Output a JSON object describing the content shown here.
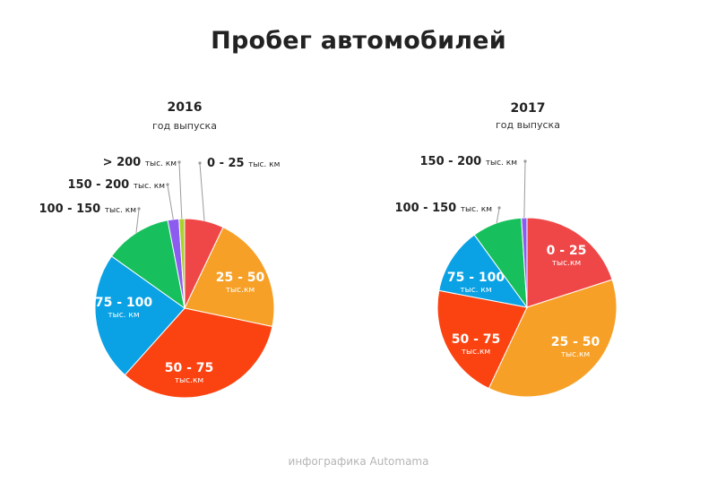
{
  "title": "Пробег автомобилей",
  "footer": "инфографика Automama",
  "chart_data": [
    {
      "type": "pie",
      "title": "2016",
      "subtitle": "год выпуска",
      "slices": [
        {
          "label": "0 - 25",
          "unit": "тыс. км",
          "value": 7,
          "color": "#ef4747",
          "label_pos": "outside"
        },
        {
          "label": "25 - 50",
          "unit": "тыс.км",
          "value": 21,
          "color": "#f7a027",
          "label_pos": "inside"
        },
        {
          "label": "50 - 75",
          "unit": "тыс.км",
          "value": 33,
          "color": "#fb4312",
          "label_pos": "inside"
        },
        {
          "label": "75 - 100",
          "unit": "тыс. км",
          "value": 23,
          "color": "#0aa2e4",
          "label_pos": "inside"
        },
        {
          "label": "100 - 150",
          "unit": "тыс. км",
          "value": 12,
          "color": "#17c05c",
          "label_pos": "outside"
        },
        {
          "label": "150 - 200",
          "unit": "тыс. км",
          "value": 2,
          "color": "#8c5cf0",
          "label_pos": "outside"
        },
        {
          "label": "> 200",
          "unit": "тыс. км",
          "value": 1,
          "color": "#a8d12c",
          "label_pos": "outside"
        }
      ]
    },
    {
      "type": "pie",
      "title": "2017",
      "subtitle": "год выпуска",
      "slices": [
        {
          "label": "0 - 25",
          "unit": "тыс.км",
          "value": 20,
          "color": "#ef4747",
          "label_pos": "inside"
        },
        {
          "label": "25 - 50",
          "unit": "тыс.км",
          "value": 37,
          "color": "#f7a027",
          "label_pos": "inside"
        },
        {
          "label": "50 - 75",
          "unit": "тыс.км",
          "value": 21,
          "color": "#fb4312",
          "label_pos": "inside"
        },
        {
          "label": "75 - 100",
          "unit": "тыс. км",
          "value": 12,
          "color": "#0aa2e4",
          "label_pos": "inside"
        },
        {
          "label": "100 - 150",
          "unit": "тыс. км",
          "value": 9,
          "color": "#17c05c",
          "label_pos": "outside"
        },
        {
          "label": "150 - 200",
          "unit": "тыс. км",
          "value": 1,
          "color": "#8c5cf0",
          "label_pos": "outside"
        }
      ]
    }
  ]
}
